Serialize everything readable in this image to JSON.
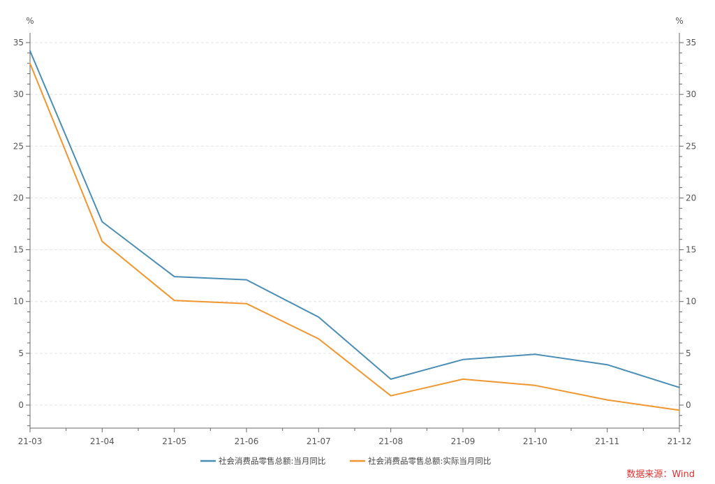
{
  "chart_data": {
    "type": "line",
    "categories": [
      "21-03",
      "21-04",
      "21-05",
      "21-06",
      "21-07",
      "21-08",
      "21-09",
      "21-10",
      "21-11",
      "21-12"
    ],
    "series": [
      {
        "name": "社会消费品零售总额:当月同比",
        "color": "#4a8db5",
        "values": [
          34.2,
          17.7,
          12.4,
          12.1,
          8.5,
          2.5,
          4.4,
          4.9,
          3.9,
          1.7
        ]
      },
      {
        "name": "社会消费品零售总额:实际当月同比",
        "color": "#f0962e",
        "values": [
          33.0,
          15.8,
          10.1,
          9.8,
          6.4,
          0.9,
          2.5,
          1.9,
          0.5,
          -0.5
        ]
      }
    ],
    "left_axis": {
      "unit": "%",
      "ticks": [
        0,
        5,
        10,
        15,
        20,
        25,
        30,
        35
      ],
      "ylim": [
        -2,
        37
      ]
    },
    "right_axis": {
      "unit": "%",
      "ticks": [
        0,
        5,
        10,
        15,
        20,
        25,
        30,
        35
      ],
      "ylim": [
        -2,
        37
      ]
    },
    "grid": true,
    "legend_position": "bottom-center",
    "source": "数据来源：Wind",
    "source_color": "#e0302f"
  }
}
